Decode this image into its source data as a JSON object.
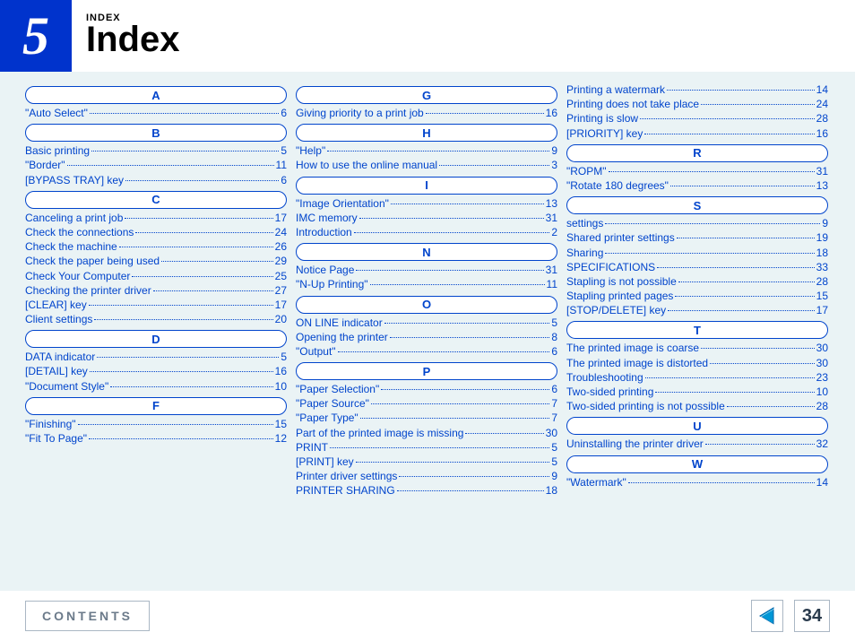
{
  "header": {
    "chapter_number": "5",
    "breadcrumb": "INDEX",
    "title": "Index"
  },
  "columns": [
    [
      {
        "type": "head",
        "text": "A"
      },
      {
        "type": "entry",
        "label": "\"Auto Select\"",
        "page": "6"
      },
      {
        "type": "head",
        "text": "B"
      },
      {
        "type": "entry",
        "label": "Basic printing",
        "page": "5"
      },
      {
        "type": "entry",
        "label": "\"Border\"",
        "page": "11"
      },
      {
        "type": "entry",
        "label": "[BYPASS TRAY] key",
        "page": "6"
      },
      {
        "type": "head",
        "text": "C"
      },
      {
        "type": "entry",
        "label": "Canceling a print job",
        "page": "17"
      },
      {
        "type": "entry",
        "label": "Check the connections",
        "page": "24"
      },
      {
        "type": "entry",
        "label": "Check the machine",
        "page": "26"
      },
      {
        "type": "entry",
        "label": "Check the paper being used",
        "page": "29"
      },
      {
        "type": "entry",
        "label": "Check Your Computer",
        "page": "25"
      },
      {
        "type": "entry",
        "label": "Checking the printer driver",
        "page": "27"
      },
      {
        "type": "entry",
        "label": "[CLEAR] key",
        "page": "17"
      },
      {
        "type": "entry",
        "label": "Client settings",
        "page": "20"
      },
      {
        "type": "head",
        "text": "D"
      },
      {
        "type": "entry",
        "label": "DATA indicator",
        "page": "5"
      },
      {
        "type": "entry",
        "label": "[DETAIL] key",
        "page": "16"
      },
      {
        "type": "entry",
        "label": "\"Document Style\"",
        "page": "10"
      },
      {
        "type": "head",
        "text": "F"
      },
      {
        "type": "entry",
        "label": "\"Finishing\"",
        "page": "15"
      },
      {
        "type": "entry",
        "label": "\"Fit To Page\"",
        "page": "12"
      }
    ],
    [
      {
        "type": "head",
        "text": "G"
      },
      {
        "type": "entry",
        "label": "Giving priority to a print job",
        "page": "16"
      },
      {
        "type": "head",
        "text": "H"
      },
      {
        "type": "entry",
        "label": "\"Help\"",
        "page": "9"
      },
      {
        "type": "entry",
        "label": "How to use the online manual",
        "page": "3"
      },
      {
        "type": "head",
        "text": "I"
      },
      {
        "type": "entry",
        "label": "\"Image Orientation\"",
        "page": "13"
      },
      {
        "type": "entry",
        "label": "IMC memory",
        "page": "31"
      },
      {
        "type": "entry",
        "label": "Introduction",
        "page": "2"
      },
      {
        "type": "head",
        "text": "N"
      },
      {
        "type": "entry",
        "label": "Notice Page",
        "page": "31"
      },
      {
        "type": "entry",
        "label": "\"N-Up Printing\"",
        "page": "11"
      },
      {
        "type": "head",
        "text": "O"
      },
      {
        "type": "entry",
        "label": "ON LINE indicator",
        "page": "5"
      },
      {
        "type": "entry",
        "label": "Opening the printer",
        "page": "8"
      },
      {
        "type": "entry",
        "label": "\"Output\"",
        "page": "6"
      },
      {
        "type": "head",
        "text": "P"
      },
      {
        "type": "entry",
        "label": "\"Paper Selection\"",
        "page": "6"
      },
      {
        "type": "entry",
        "label": "\"Paper Source\"",
        "page": "7"
      },
      {
        "type": "entry",
        "label": "\"Paper Type\"",
        "page": "7"
      },
      {
        "type": "entry",
        "label": "Part of the printed image is missing",
        "page": "30"
      },
      {
        "type": "entry",
        "label": "PRINT",
        "page": "5"
      },
      {
        "type": "entry",
        "label": "[PRINT] key",
        "page": "5"
      },
      {
        "type": "entry",
        "label": "Printer driver settings",
        "page": "9"
      },
      {
        "type": "entry",
        "label": "PRINTER SHARING",
        "page": "18"
      }
    ],
    [
      {
        "type": "entry",
        "label": "Printing a watermark",
        "page": "14"
      },
      {
        "type": "entry",
        "label": "Printing does not take place",
        "page": "24"
      },
      {
        "type": "entry",
        "label": "Printing is slow",
        "page": "28"
      },
      {
        "type": "entry",
        "label": "[PRIORITY] key",
        "page": "16"
      },
      {
        "type": "head",
        "text": "R"
      },
      {
        "type": "entry",
        "label": "\"ROPM\"",
        "page": "31"
      },
      {
        "type": "entry",
        "label": "\"Rotate 180 degrees\"",
        "page": "13"
      },
      {
        "type": "head",
        "text": "S"
      },
      {
        "type": "entry",
        "label": "settings",
        "page": "9"
      },
      {
        "type": "entry",
        "label": "Shared printer settings",
        "page": "19"
      },
      {
        "type": "entry",
        "label": "Sharing",
        "page": "18"
      },
      {
        "type": "entry",
        "label": "SPECIFICATIONS",
        "page": "33"
      },
      {
        "type": "entry",
        "label": "Stapling is not possible",
        "page": "28"
      },
      {
        "type": "entry",
        "label": "Stapling printed pages",
        "page": "15"
      },
      {
        "type": "entry",
        "label": "[STOP/DELETE] key",
        "page": "17"
      },
      {
        "type": "head",
        "text": "T"
      },
      {
        "type": "entry",
        "label": "The printed image is coarse",
        "page": "30"
      },
      {
        "type": "entry",
        "label": "The printed image is distorted",
        "page": "30"
      },
      {
        "type": "entry",
        "label": "Troubleshooting",
        "page": "23"
      },
      {
        "type": "entry",
        "label": "Two-sided printing",
        "page": "10"
      },
      {
        "type": "entry",
        "label": "Two-sided printing is not possible",
        "page": "28"
      },
      {
        "type": "head",
        "text": "U"
      },
      {
        "type": "entry",
        "label": "Uninstalling the printer driver",
        "page": "32"
      },
      {
        "type": "head",
        "text": "W"
      },
      {
        "type": "entry",
        "label": "\"Watermark\"",
        "page": "14"
      }
    ]
  ],
  "footer": {
    "contents": "CONTENTS",
    "page_number": "34"
  },
  "colors": {
    "link": "#0044cc",
    "badge_bg": "#0033cc",
    "body_bg": "#eaf3f5"
  }
}
